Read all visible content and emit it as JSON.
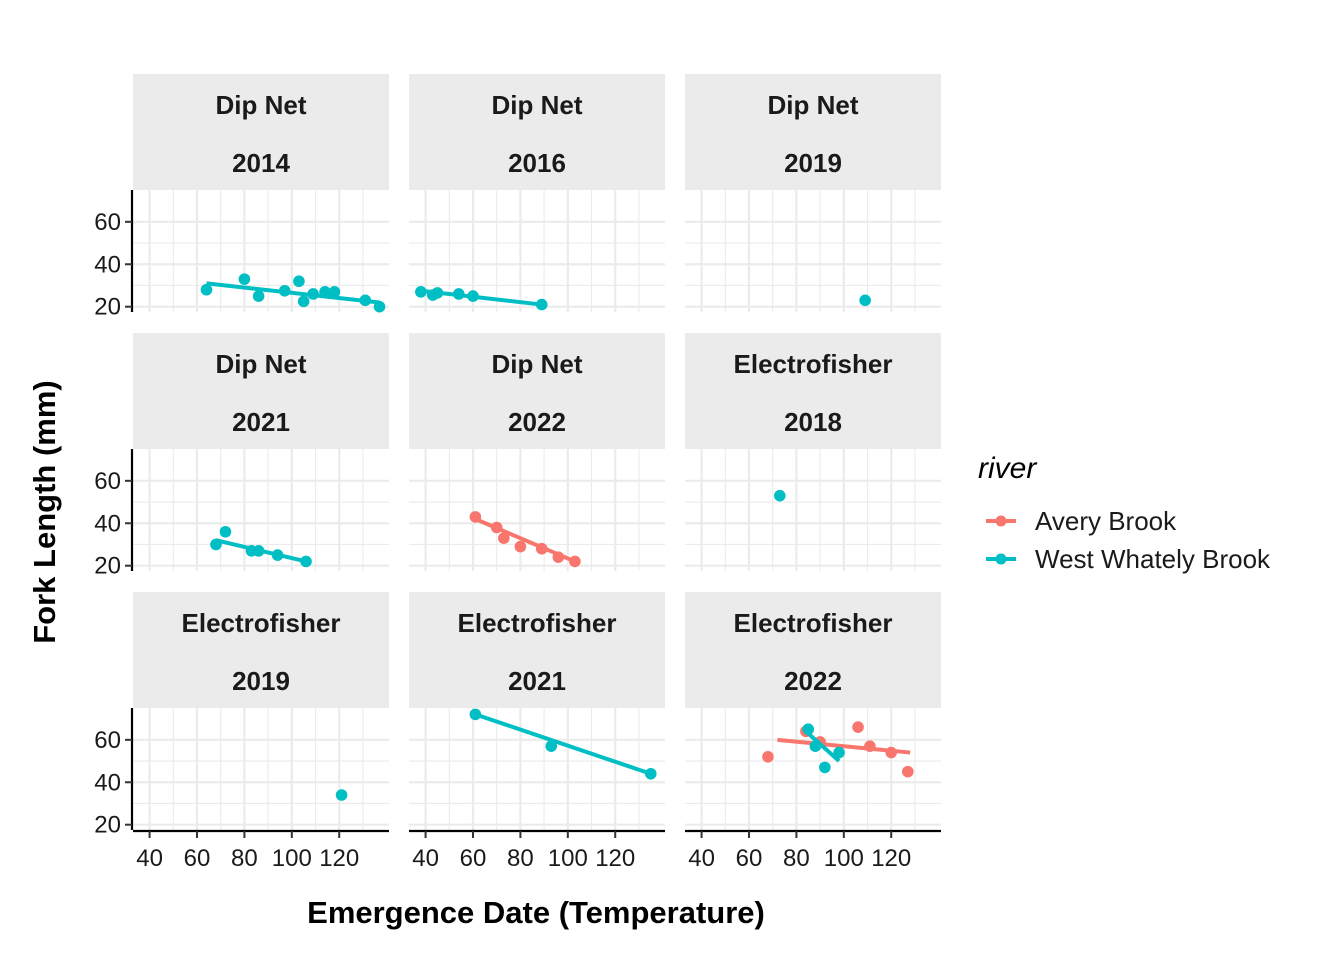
{
  "chart_data": {
    "type": "scatter",
    "xlabel": "Emergence Date (Temperature)",
    "ylabel": "Fork Length (mm)",
    "xlim": [
      33,
      141
    ],
    "ylim": [
      17.5,
      75
    ],
    "xticks": [
      40,
      60,
      80,
      100,
      120
    ],
    "yticks": [
      20,
      40,
      60
    ],
    "grid": true,
    "legend": {
      "title": "river",
      "position": "right",
      "entries": [
        {
          "name": "Avery Brook",
          "color": "#F8766D"
        },
        {
          "name": "West Whately Brook",
          "color": "#00BFC4"
        }
      ]
    },
    "panels": [
      {
        "method": "Dip Net",
        "year": "2014",
        "series": [
          {
            "name": "West Whately Brook",
            "points": [
              [
                64,
                28
              ],
              [
                80,
                33
              ],
              [
                86,
                25
              ],
              [
                97,
                27.5
              ],
              [
                103,
                32
              ],
              [
                105,
                22.5
              ],
              [
                109,
                26
              ],
              [
                114,
                27
              ],
              [
                118,
                27
              ],
              [
                131,
                23
              ],
              [
                137,
                20
              ]
            ],
            "fit": [
              [
                64,
                31
              ],
              [
                137,
                22
              ]
            ]
          }
        ]
      },
      {
        "method": "Dip Net",
        "year": "2016",
        "series": [
          {
            "name": "West Whately Brook",
            "points": [
              [
                38,
                27
              ],
              [
                43,
                25.5
              ],
              [
                45,
                26.5
              ],
              [
                54,
                26
              ],
              [
                60,
                25
              ],
              [
                89,
                21
              ]
            ],
            "fit": [
              [
                38,
                27.5
              ],
              [
                89,
                21
              ]
            ]
          }
        ]
      },
      {
        "method": "Dip Net",
        "year": "2019",
        "series": [
          {
            "name": "West Whately Brook",
            "points": [
              [
                109,
                23
              ]
            ],
            "fit": []
          }
        ]
      },
      {
        "method": "Dip Net",
        "year": "2021",
        "series": [
          {
            "name": "West Whately Brook",
            "points": [
              [
                68,
                30
              ],
              [
                72,
                36
              ],
              [
                83,
                27
              ],
              [
                86,
                27
              ],
              [
                94,
                25
              ],
              [
                106,
                22
              ]
            ],
            "fit": [
              [
                68,
                32
              ],
              [
                106,
                22
              ]
            ]
          }
        ]
      },
      {
        "method": "Dip Net",
        "year": "2022",
        "series": [
          {
            "name": "Avery Brook",
            "points": [
              [
                61,
                43
              ],
              [
                70,
                38
              ],
              [
                73,
                33
              ],
              [
                80,
                29
              ],
              [
                89,
                28
              ],
              [
                96,
                24
              ],
              [
                103,
                22
              ]
            ],
            "fit": [
              [
                61,
                42
              ],
              [
                103,
                22
              ]
            ]
          }
        ]
      },
      {
        "method": "Electrofisher",
        "year": "2018",
        "series": [
          {
            "name": "West Whately Brook",
            "points": [
              [
                73,
                53
              ]
            ],
            "fit": []
          }
        ]
      },
      {
        "method": "Electrofisher",
        "year": "2019",
        "series": [
          {
            "name": "West Whately Brook",
            "points": [
              [
                121,
                34
              ]
            ],
            "fit": []
          }
        ]
      },
      {
        "method": "Electrofisher",
        "year": "2021",
        "series": [
          {
            "name": "West Whately Brook",
            "points": [
              [
                61,
                72
              ],
              [
                93,
                57
              ],
              [
                135,
                44
              ]
            ],
            "fit": [
              [
                61,
                72
              ],
              [
                135,
                44
              ]
            ]
          }
        ]
      },
      {
        "method": "Electrofisher",
        "year": "2022",
        "series": [
          {
            "name": "Avery Brook",
            "points": [
              [
                68,
                52
              ],
              [
                84,
                64
              ],
              [
                90,
                59
              ],
              [
                106,
                66
              ],
              [
                111,
                57
              ],
              [
                120,
                54
              ],
              [
                127,
                45
              ]
            ],
            "fit": [
              [
                72,
                60
              ],
              [
                128,
                54
              ]
            ]
          },
          {
            "name": "West Whately Brook",
            "points": [
              [
                85,
                65
              ],
              [
                88,
                57
              ],
              [
                92,
                47
              ],
              [
                98,
                54
              ]
            ],
            "fit": [
              [
                84,
                64
              ],
              [
                98,
                50
              ]
            ]
          }
        ]
      }
    ]
  }
}
